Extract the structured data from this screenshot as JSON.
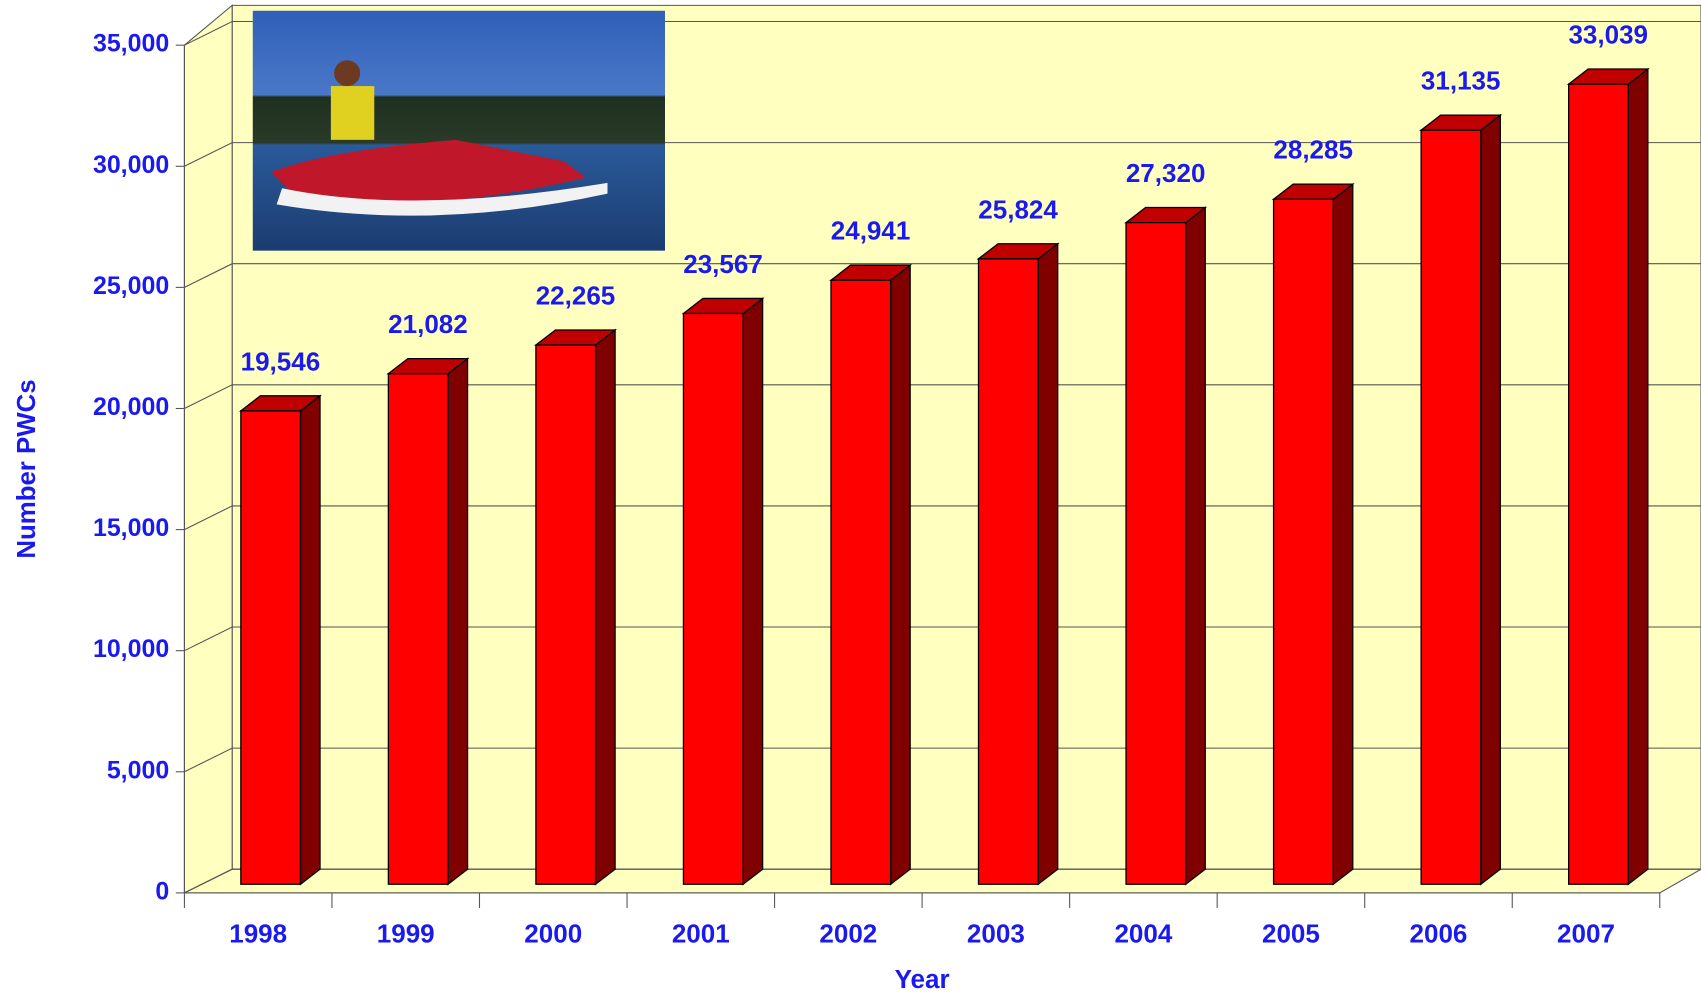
{
  "chart_data": {
    "type": "bar",
    "x_label": "Year",
    "y_label": "Number PWCs",
    "categories": [
      "1998",
      "1999",
      "2000",
      "2001",
      "2002",
      "2003",
      "2004",
      "2005",
      "2006",
      "2007"
    ],
    "values": [
      19546,
      21082,
      22265,
      23567,
      24941,
      25824,
      27320,
      28285,
      31135,
      33039
    ],
    "value_labels": [
      "19,546",
      "21,082",
      "22,265",
      "23,567",
      "24,941",
      "25,824",
      "27,320",
      "28,285",
      "31,135",
      "33,039"
    ],
    "color": "#ff0000",
    "ylim": [
      0,
      35000
    ],
    "yticks": [
      0,
      {
        "value": 5000,
        "label": "5,000"
      },
      {
        "value": 10000,
        "label": "10,000"
      },
      {
        "value": 15000,
        "label": "15,000"
      },
      {
        "value": 20000,
        "label": "20,000"
      },
      {
        "value": 25000,
        "label": "25,000"
      },
      {
        "value": 30000,
        "label": "30,000"
      },
      {
        "value": 35000,
        "label": "35,000"
      }
    ],
    "grid": true
  }
}
